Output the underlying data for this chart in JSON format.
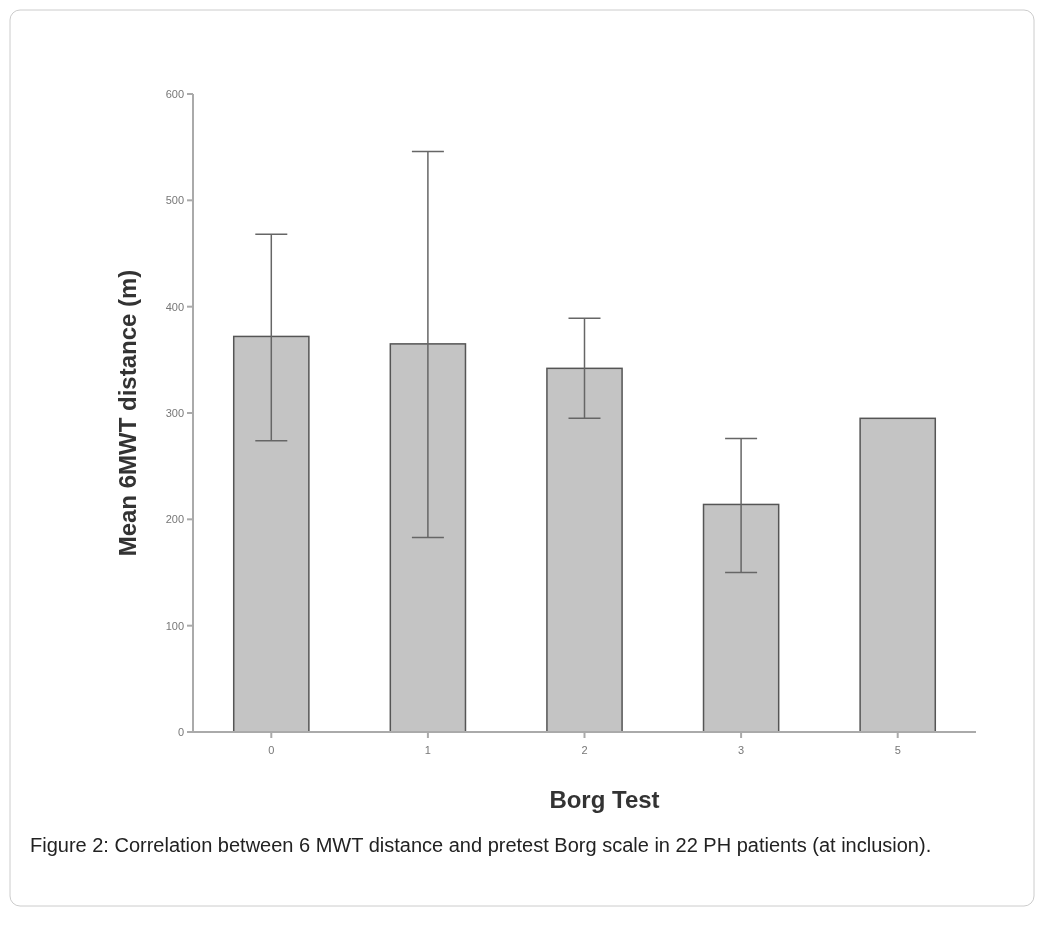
{
  "chart_data": {
    "type": "bar",
    "xlabel": "Borg Test",
    "ylabel": "Mean 6MWT distance (m)",
    "categories": [
      "0",
      "1",
      "2",
      "3",
      "5"
    ],
    "values": [
      372,
      365,
      342,
      214,
      295
    ],
    "errors": [
      [
        274,
        468
      ],
      [
        183,
        546
      ],
      [
        295,
        389
      ],
      [
        150,
        276
      ],
      null
    ],
    "color": "#c4c4c4",
    "ylim": [
      0,
      600
    ],
    "yticks": [
      0,
      100,
      200,
      300,
      400,
      500,
      600
    ],
    "grid": false,
    "annotations": [
      "Figure 2: Correlation between 6 MWT distance and pretest Borg scale in 22 PH patients (at inclusion)."
    ]
  }
}
